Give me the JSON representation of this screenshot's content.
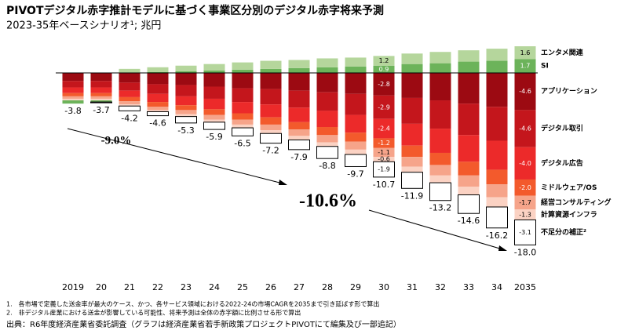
{
  "chart_data": {
    "type": "bar",
    "stacked": true,
    "title": "PIVOTデジタル赤字推計モデルに基づく事業区分別のデジタル赤字将来予測",
    "subtitle": "2023-35年ベースシナリオ¹; 兆円",
    "categories": [
      "2019",
      "20",
      "21",
      "22",
      "23",
      "24",
      "25",
      "26",
      "27",
      "28",
      "29",
      "30",
      "31",
      "32",
      "33",
      "34",
      "2035"
    ],
    "series": [
      {
        "name": "アプリケーション",
        "color": "#9c0a12",
        "label_color": "#ffffff",
        "values": [
          -1.0,
          -1.0,
          -1.2,
          -1.4,
          -1.5,
          -1.7,
          -1.9,
          -2.0,
          -2.2,
          -2.4,
          -2.6,
          -2.8,
          -3.1,
          -3.4,
          -3.8,
          -4.2,
          -4.6
        ],
        "value_labels": [
          null,
          null,
          null,
          null,
          null,
          null,
          null,
          null,
          null,
          null,
          null,
          "-2.8",
          null,
          null,
          null,
          null,
          "-4.6"
        ]
      },
      {
        "name": "デジタル取引",
        "color": "#c4161c",
        "label_color": "#ffffff",
        "values": [
          -0.8,
          -0.8,
          -1.0,
          -1.2,
          -1.4,
          -1.5,
          -1.7,
          -1.9,
          -2.1,
          -2.3,
          -2.6,
          -2.9,
          -3.2,
          -3.5,
          -3.9,
          -4.2,
          -4.6
        ],
        "value_labels": [
          null,
          null,
          null,
          null,
          null,
          null,
          null,
          null,
          null,
          null,
          null,
          "-2.9",
          null,
          null,
          null,
          null,
          "-4.6"
        ]
      },
      {
        "name": "デジタル広告",
        "color": "#ec2a2a",
        "label_color": "#ffffff",
        "values": [
          -0.7,
          -0.7,
          -0.8,
          -1.0,
          -1.1,
          -1.3,
          -1.4,
          -1.6,
          -1.8,
          -2.0,
          -2.2,
          -2.4,
          -2.7,
          -3.0,
          -3.3,
          -3.6,
          -4.0
        ],
        "value_labels": [
          null,
          null,
          null,
          null,
          null,
          null,
          null,
          null,
          null,
          null,
          null,
          "-2.4",
          null,
          null,
          null,
          null,
          "-4.0"
        ]
      },
      {
        "name": "ミドルウェア/OS",
        "color": "#f35a2c",
        "label_color": "#ffffff",
        "values": [
          -0.4,
          -0.4,
          -0.5,
          -0.6,
          -0.6,
          -0.7,
          -0.8,
          -0.9,
          -0.9,
          -1.0,
          -1.1,
          -1.2,
          -1.4,
          -1.5,
          -1.7,
          -1.8,
          -2.0
        ],
        "value_labels": [
          null,
          null,
          null,
          null,
          null,
          null,
          null,
          null,
          null,
          null,
          null,
          "-1.2",
          null,
          null,
          null,
          null,
          "-2.0"
        ]
      },
      {
        "name": "経営コンサルティング",
        "color": "#f6a48a",
        "label_color": "#000000",
        "values": [
          -0.3,
          -0.3,
          -0.4,
          -0.4,
          -0.5,
          -0.6,
          -0.6,
          -0.7,
          -0.8,
          -0.9,
          -1.0,
          -1.1,
          -1.2,
          -1.3,
          -1.4,
          -1.6,
          -1.7
        ],
        "value_labels": [
          null,
          null,
          null,
          null,
          null,
          null,
          null,
          null,
          null,
          null,
          null,
          "-1.1",
          null,
          null,
          null,
          null,
          "-1.7"
        ]
      },
      {
        "name": "計算資源インフラ",
        "color": "#fbd2c3",
        "label_color": "#000000",
        "values": [
          -0.2,
          -0.2,
          -0.2,
          -0.2,
          -0.3,
          -0.3,
          -0.4,
          -0.4,
          -0.5,
          -0.5,
          -0.6,
          -0.6,
          -0.7,
          -0.9,
          -1.0,
          -1.2,
          -1.3
        ],
        "value_labels": [
          null,
          null,
          null,
          null,
          null,
          null,
          null,
          null,
          null,
          null,
          null,
          "-0.6",
          null,
          null,
          null,
          null,
          "-1.3"
        ]
      },
      {
        "name": "SI",
        "color": "#6cb35a",
        "label_color": "#ffffff",
        "values": [
          -0.4,
          -0.2,
          0,
          0.1,
          0.2,
          0.3,
          0.4,
          0.5,
          0.6,
          0.7,
          0.8,
          0.9,
          1.1,
          1.2,
          1.4,
          1.5,
          1.7
        ],
        "value_labels": [
          null,
          null,
          null,
          null,
          null,
          null,
          null,
          null,
          null,
          null,
          null,
          "0.9",
          null,
          null,
          null,
          null,
          "1.7"
        ]
      },
      {
        "name": "エンタメ関連",
        "color": "#b5d69c",
        "label_color": "#000000",
        "values": [
          0,
          0,
          0.5,
          0.6,
          0.7,
          0.8,
          0.9,
          1.0,
          1.0,
          1.1,
          1.1,
          1.2,
          1.3,
          1.4,
          1.4,
          1.5,
          1.6
        ],
        "value_labels": [
          null,
          null,
          null,
          null,
          null,
          null,
          null,
          null,
          null,
          null,
          null,
          "1.2",
          null,
          null,
          null,
          null,
          "1.6"
        ]
      },
      {
        "name": "不足分の補正²",
        "color": "#ffffff",
        "stroke": "#000000",
        "label_color": "#000000",
        "values": [
          0,
          -0.1,
          -0.6,
          -0.5,
          -0.8,
          -0.9,
          -1.0,
          -1.2,
          -1.2,
          -1.5,
          -1.5,
          -1.9,
          -2.0,
          -2.2,
          -2.3,
          -2.6,
          -3.1
        ],
        "value_labels": [
          null,
          null,
          null,
          null,
          null,
          null,
          null,
          null,
          null,
          null,
          null,
          "-1.9",
          null,
          null,
          null,
          null,
          "-3.1"
        ]
      }
    ],
    "totals": {
      "values": [
        -3.8,
        -3.7,
        -4.2,
        -4.6,
        -5.3,
        -5.9,
        -6.5,
        -7.2,
        -7.9,
        -8.8,
        -9.7,
        -10.7,
        -11.9,
        -13.2,
        -14.6,
        -16.2,
        -18.0
      ],
      "value_labels": [
        "-3.8",
        "-3.7",
        "-4.2",
        "-4.6",
        "-5.3",
        "-5.9",
        "-6.5",
        "-7.2",
        "-7.9",
        "-8.8",
        "-9.7",
        "-10.7",
        "-11.9",
        "-13.2",
        "-14.6",
        "-16.2",
        "-18.0"
      ]
    },
    "ylim": [
      -25,
      4
    ],
    "annotations": [
      "-9.0%",
      "-10.6%"
    ],
    "footnotes": [
      "1.　各市場で定義した送金率が最大のケース、かつ、各サービス領域における2022-24の市場CAGRを2035まで引き延ばす形で算出",
      "2.　非デジタル産業における送金が影響している可能性、将来予測は全体の赤字額に比例させる形で算出"
    ],
    "source": "出典：R6年度経済産業省委託調査（グラフは経済産業省若手新政策プロジェクトPIVOTにて編集及び一部追記）"
  }
}
